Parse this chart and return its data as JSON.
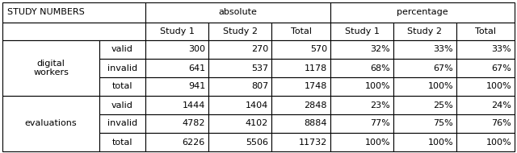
{
  "title_cell": "STUDY NUMBERS",
  "col_group_labels": [
    "absolute",
    "percentage"
  ],
  "sub_headers": [
    "Study 1",
    "Study 2",
    "Total",
    "Study 1",
    "Study 2",
    "Total"
  ],
  "row_groups": [
    {
      "label": "digital\nworkers",
      "rows": [
        {
          "sub": "valid",
          "abs": [
            "300",
            "270",
            "570"
          ],
          "pct": [
            "32%",
            "33%",
            "33%"
          ]
        },
        {
          "sub": "invalid",
          "abs": [
            "641",
            "537",
            "1178"
          ],
          "pct": [
            "68%",
            "67%",
            "67%"
          ]
        },
        {
          "sub": "total",
          "abs": [
            "941",
            "807",
            "1748"
          ],
          "pct": [
            "100%",
            "100%",
            "100%"
          ]
        }
      ]
    },
    {
      "label": "evaluations",
      "rows": [
        {
          "sub": "valid",
          "abs": [
            "1444",
            "1404",
            "2848"
          ],
          "pct": [
            "23%",
            "25%",
            "24%"
          ]
        },
        {
          "sub": "invalid",
          "abs": [
            "4782",
            "4102",
            "8884"
          ],
          "pct": [
            "77%",
            "75%",
            "76%"
          ]
        },
        {
          "sub": "total",
          "abs": [
            "6226",
            "5506",
            "11732"
          ],
          "pct": [
            "100%",
            "100%",
            "100%"
          ]
        }
      ]
    }
  ],
  "bg_color": "#ffffff",
  "border_color": "#000000",
  "font_size": 8.0
}
